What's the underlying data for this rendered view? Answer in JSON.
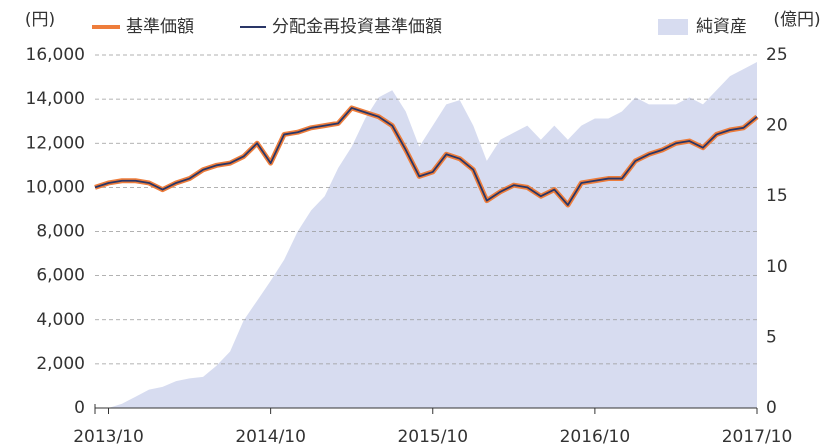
{
  "chart_data": {
    "type": "line",
    "y_label": "(円)",
    "y2_label": "(億円)",
    "x": [
      "2013/09",
      "2013/10",
      "2013/11",
      "2013/12",
      "2014/01",
      "2014/02",
      "2014/03",
      "2014/04",
      "2014/05",
      "2014/06",
      "2014/07",
      "2014/08",
      "2014/09",
      "2014/10",
      "2014/11",
      "2014/12",
      "2015/01",
      "2015/02",
      "2015/03",
      "2015/04",
      "2015/05",
      "2015/06",
      "2015/07",
      "2015/08",
      "2015/09",
      "2015/10",
      "2015/11",
      "2015/12",
      "2016/01",
      "2016/02",
      "2016/03",
      "2016/04",
      "2016/05",
      "2016/06",
      "2016/07",
      "2016/08",
      "2016/09",
      "2016/10",
      "2016/11",
      "2016/12",
      "2017/01",
      "2017/02",
      "2017/03",
      "2017/04",
      "2017/05",
      "2017/06",
      "2017/07",
      "2017/08",
      "2017/09",
      "2017/10"
    ],
    "series": [
      {
        "name": "純資産",
        "type": "area",
        "axis": "y2",
        "color": "#d7dcf0",
        "values": [
          0,
          0,
          0.3,
          0.8,
          1.3,
          1.5,
          1.9,
          2.1,
          2.2,
          3.0,
          4.0,
          6.2,
          7.6,
          9,
          10.5,
          12.5,
          14,
          15,
          17,
          18.5,
          20.5,
          22,
          22.5,
          21,
          18.5,
          20,
          21.5,
          21.8,
          20,
          17.5,
          19,
          19.5,
          20,
          19,
          20,
          19,
          20,
          20.5,
          20.5,
          21,
          22,
          21.5,
          21.5,
          21.5,
          22,
          21.5,
          22.5,
          23.5,
          24,
          24.5
        ]
      },
      {
        "name": "基準価額",
        "type": "line",
        "axis": "y",
        "color": "#ee7d3b",
        "values": [
          10000,
          10200,
          10300,
          10300,
          10200,
          9900,
          10200,
          10400,
          10800,
          11000,
          11100,
          11400,
          12000,
          11100,
          12400,
          12500,
          12700,
          12800,
          12900,
          13600,
          13400,
          13200,
          12800,
          11700,
          10500,
          10700,
          11500,
          11300,
          10800,
          9400,
          9800,
          10100,
          10000,
          9600,
          9900,
          9200,
          10200,
          10300,
          10400,
          10400,
          11200,
          11500,
          11700,
          12000,
          12100,
          11800,
          12400,
          12600,
          12700,
          13200
        ]
      },
      {
        "name": "分配金再投資基準価額",
        "type": "line",
        "axis": "y",
        "color": "#2a3667",
        "values": [
          10000,
          10200,
          10300,
          10300,
          10200,
          9900,
          10200,
          10400,
          10800,
          11000,
          11100,
          11400,
          12000,
          11100,
          12400,
          12500,
          12700,
          12800,
          12900,
          13600,
          13400,
          13200,
          12800,
          11700,
          10500,
          10700,
          11500,
          11300,
          10800,
          9400,
          9800,
          10100,
          10000,
          9600,
          9900,
          9200,
          10200,
          10300,
          10400,
          10400,
          11200,
          11500,
          11700,
          12000,
          12100,
          11800,
          12400,
          12600,
          12700,
          13200
        ]
      }
    ],
    "xlim": [
      "2013/09",
      "2017/10"
    ],
    "xticks": [
      "2013/10",
      "2014/10",
      "2015/10",
      "2016/10",
      "2017/10"
    ],
    "ylim": [
      0,
      16000
    ],
    "yticks": [
      0,
      {
        "value": 2000,
        "label": "2,000"
      },
      {
        "value": 4000,
        "label": "4,000"
      },
      {
        "value": 6000,
        "label": "6,000"
      },
      {
        "value": 8000,
        "label": "8,000"
      },
      {
        "value": 10000,
        "label": "10,000"
      },
      {
        "value": 12000,
        "label": "12,000"
      },
      {
        "value": 14000,
        "label": "14,000"
      },
      {
        "value": 16000,
        "label": "16,000"
      }
    ],
    "y2lim": [
      0,
      25
    ],
    "y2ticks": [
      0,
      5,
      10,
      15,
      20,
      25
    ],
    "grid": true
  }
}
